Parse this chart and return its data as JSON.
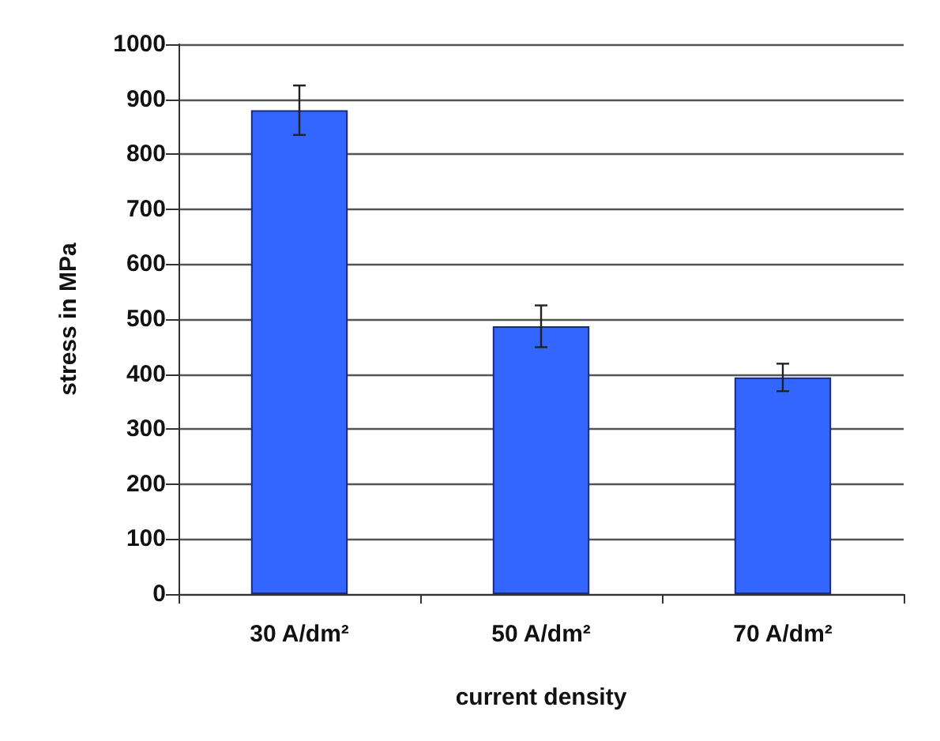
{
  "chart_data": {
    "type": "bar",
    "xlabel": "current density",
    "ylabel": "stress in MPa",
    "categories": [
      "30 A/dm²",
      "50 A/dm²",
      "70 A/dm²"
    ],
    "values": [
      880,
      487,
      394
    ],
    "errors": [
      45,
      38,
      25
    ],
    "color": "#3366ff",
    "ylim": [
      0,
      1000
    ],
    "yticks": [
      0,
      100,
      200,
      300,
      400,
      500,
      600,
      700,
      800,
      900,
      1000
    ],
    "grid": "y"
  }
}
